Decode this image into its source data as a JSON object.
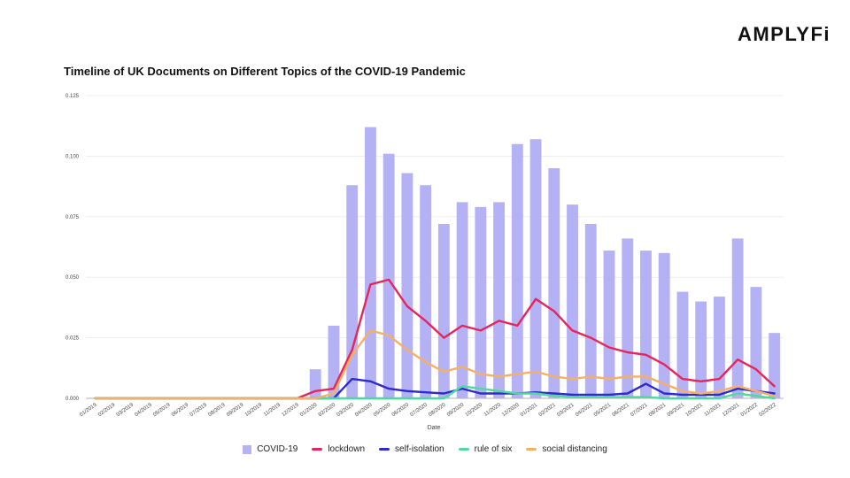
{
  "brand": {
    "name": "AMPLYFi"
  },
  "chart_data": {
    "type": "bar+line",
    "title": "Timeline of UK Documents on Different Topics of the COVID-19 Pandemic",
    "xlabel": "Date",
    "ylabel": "",
    "ylim": [
      0,
      0.125
    ],
    "yticks": [
      "0.000",
      "0.025",
      "0.050",
      "0.075",
      "0.100",
      "0.125"
    ],
    "grid": true,
    "legend_position": "bottom",
    "categories": [
      "01/2019",
      "02/2019",
      "03/2019",
      "04/2019",
      "05/2019",
      "06/2019",
      "07/2019",
      "08/2019",
      "09/2019",
      "10/2019",
      "11/2019",
      "12/2019",
      "01/2020",
      "02/2020",
      "03/2020",
      "04/2020",
      "05/2020",
      "06/2020",
      "07/2020",
      "08/2020",
      "09/2020",
      "10/2020",
      "11/2020",
      "12/2020",
      "01/2021",
      "02/2021",
      "03/2021",
      "04/2021",
      "05/2021",
      "06/2021",
      "07/2021",
      "08/2021",
      "09/2021",
      "10/2021",
      "11/2021",
      "12/2021",
      "01/2022",
      "02/2022"
    ],
    "series": [
      {
        "name": "COVID-19",
        "kind": "bar",
        "color": "#b4b2f4",
        "values": [
          0,
          0,
          0,
          0,
          0,
          0,
          0,
          0,
          0,
          0,
          0,
          0,
          0.012,
          0.03,
          0.088,
          0.112,
          0.101,
          0.093,
          0.088,
          0.072,
          0.081,
          0.079,
          0.081,
          0.105,
          0.107,
          0.095,
          0.08,
          0.072,
          0.061,
          0.066,
          0.061,
          0.06,
          0.044,
          0.04,
          0.042,
          0.066,
          0.046,
          0.027
        ]
      },
      {
        "name": "lockdown",
        "kind": "line",
        "color": "#e8245a",
        "values": [
          0,
          0,
          0,
          0,
          0,
          0,
          0,
          0,
          0,
          0,
          0,
          0,
          0.003,
          0.004,
          0.02,
          0.047,
          0.049,
          0.038,
          0.032,
          0.025,
          0.03,
          0.028,
          0.032,
          0.03,
          0.041,
          0.036,
          0.028,
          0.025,
          0.021,
          0.019,
          0.018,
          0.014,
          0.008,
          0.007,
          0.008,
          0.016,
          0.012,
          0.005
        ]
      },
      {
        "name": "self-isolation",
        "kind": "line",
        "color": "#2d2ad0",
        "values": [
          0,
          0,
          0,
          0,
          0,
          0,
          0,
          0,
          0,
          0,
          0,
          0,
          0,
          0,
          0.008,
          0.007,
          0.004,
          0.003,
          0.0025,
          0.002,
          0.004,
          0.002,
          0.002,
          0.002,
          0.0025,
          0.002,
          0.0015,
          0.0015,
          0.0015,
          0.002,
          0.006,
          0.002,
          0.0015,
          0.0015,
          0.0015,
          0.004,
          0.003,
          0.002
        ]
      },
      {
        "name": "rule of six",
        "kind": "line",
        "color": "#4fd99a",
        "values": [
          0,
          0,
          0,
          0,
          0,
          0,
          0,
          0,
          0,
          0,
          0,
          0,
          0,
          0,
          0,
          0,
          0,
          0,
          0,
          0,
          0.005,
          0.004,
          0.003,
          0.002,
          0.002,
          0.001,
          0.0005,
          0.0005,
          0.0005,
          0.0005,
          0.0005,
          0,
          0,
          0,
          0,
          0.002,
          0.001,
          0
        ]
      },
      {
        "name": "social distancing",
        "kind": "line",
        "color": "#f5b066",
        "values": [
          0,
          0,
          0,
          0,
          0,
          0,
          0,
          0,
          0,
          0,
          0,
          0,
          0,
          0.002,
          0.018,
          0.028,
          0.026,
          0.02,
          0.015,
          0.011,
          0.013,
          0.01,
          0.009,
          0.01,
          0.011,
          0.009,
          0.008,
          0.009,
          0.008,
          0.009,
          0.009,
          0.006,
          0.003,
          0.002,
          0.003,
          0.005,
          0.003,
          0.001
        ]
      }
    ]
  }
}
